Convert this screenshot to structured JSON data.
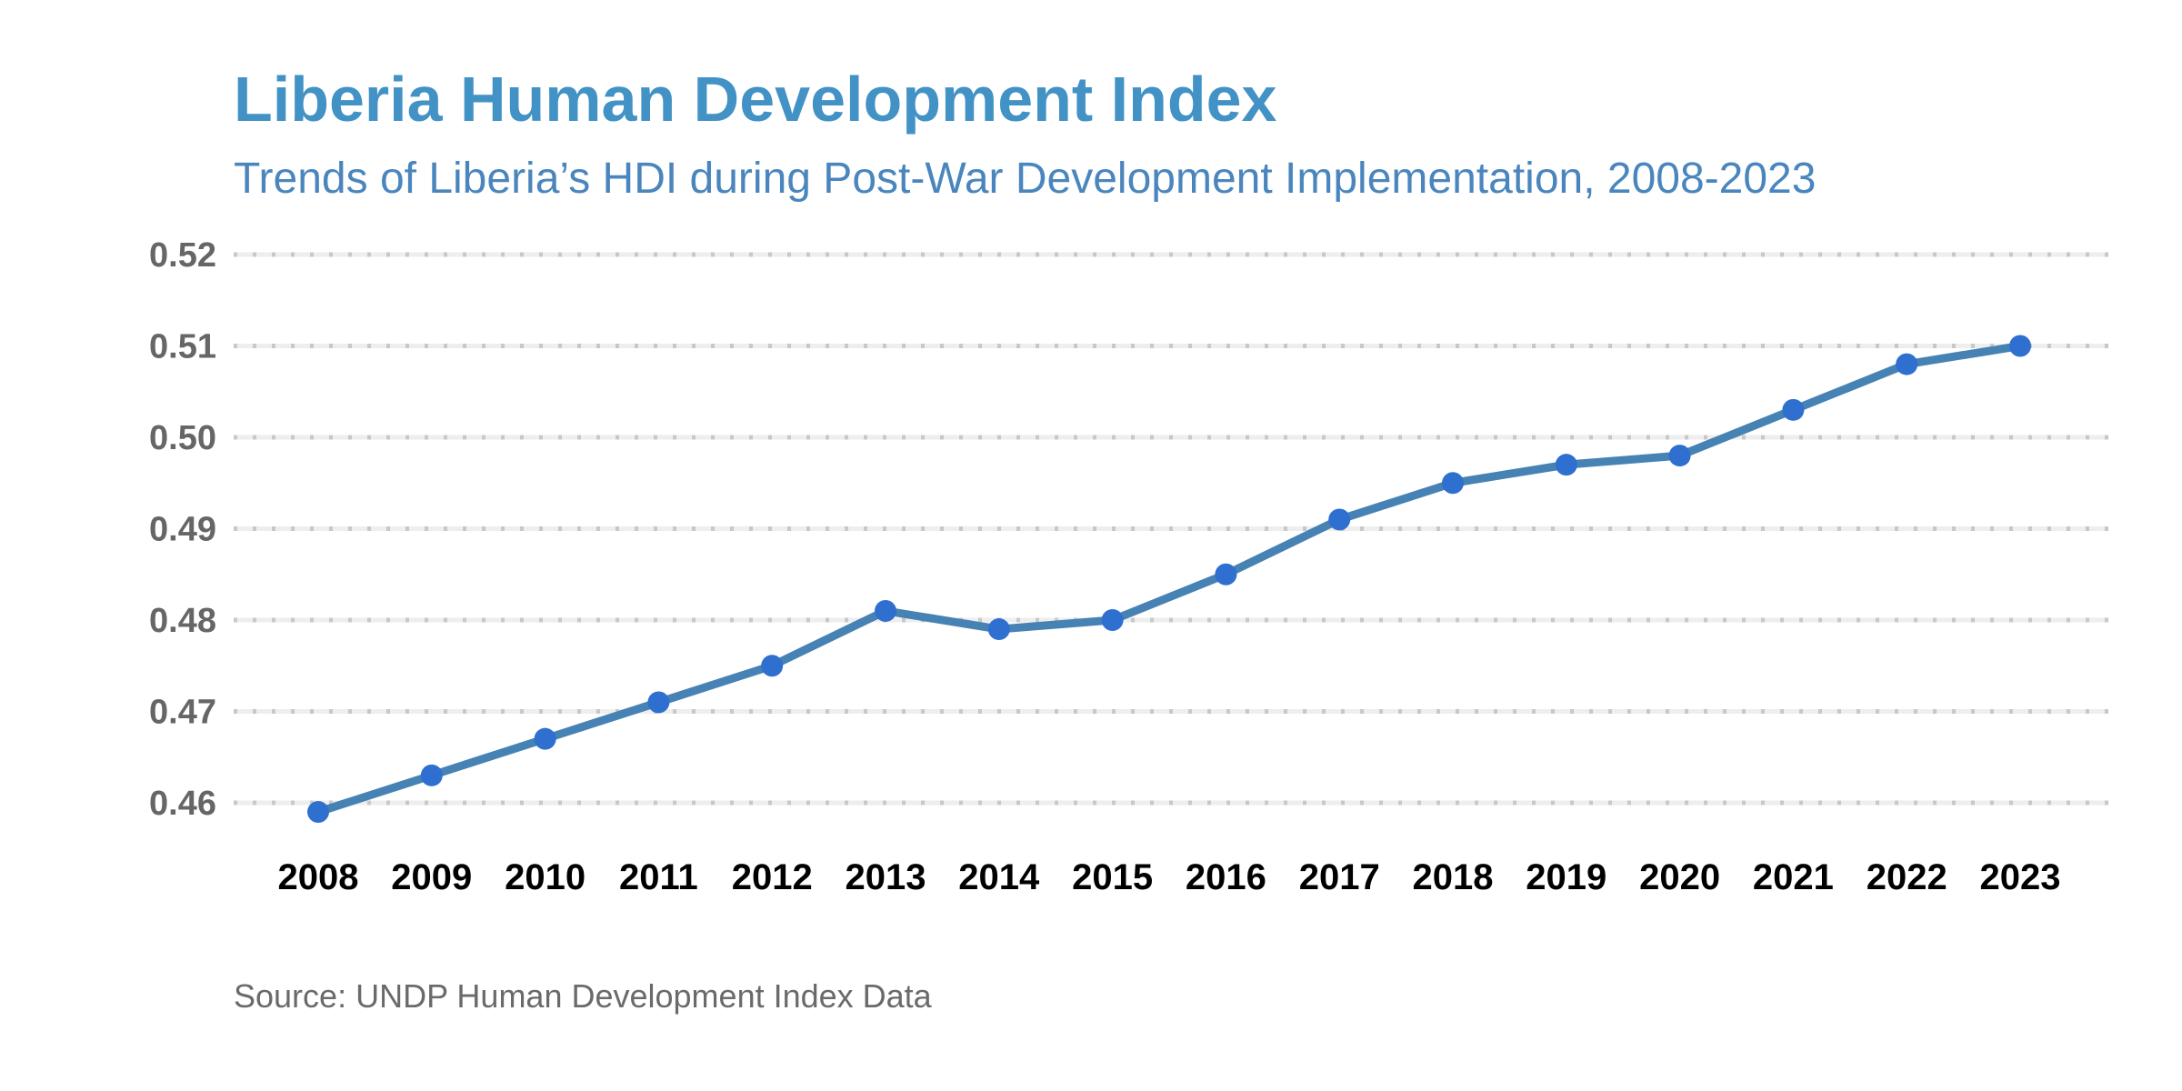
{
  "colors": {
    "title": "#4292C6",
    "line": "#4682B4",
    "marker": "#2E6FD0",
    "grid": "#C8C8C8"
  },
  "source": "Source: UNDP Human Development Index Data",
  "chart_data": {
    "type": "line",
    "title": "Liberia Human Development Index",
    "subtitle": "Trends of Liberia’s HDI during Post-War Development Implementation, 2008-2023",
    "xlabel": "",
    "ylabel": "",
    "x": [
      "2008",
      "2009",
      "2010",
      "2011",
      "2012",
      "2013",
      "2014",
      "2015",
      "2016",
      "2017",
      "2018",
      "2019",
      "2020",
      "2021",
      "2022",
      "2023"
    ],
    "series": [
      {
        "name": "HDI",
        "values": [
          0.459,
          0.463,
          0.467,
          0.471,
          0.475,
          0.481,
          0.479,
          0.48,
          0.485,
          0.491,
          0.495,
          0.497,
          0.498,
          0.503,
          0.508,
          0.51
        ]
      }
    ],
    "yticks": [
      "0.46",
      "0.47",
      "0.48",
      "0.49",
      "0.50",
      "0.51",
      "0.52"
    ],
    "ylim": [
      0.46,
      0.52
    ],
    "grid": "horizontal dotted",
    "legend": "none"
  }
}
